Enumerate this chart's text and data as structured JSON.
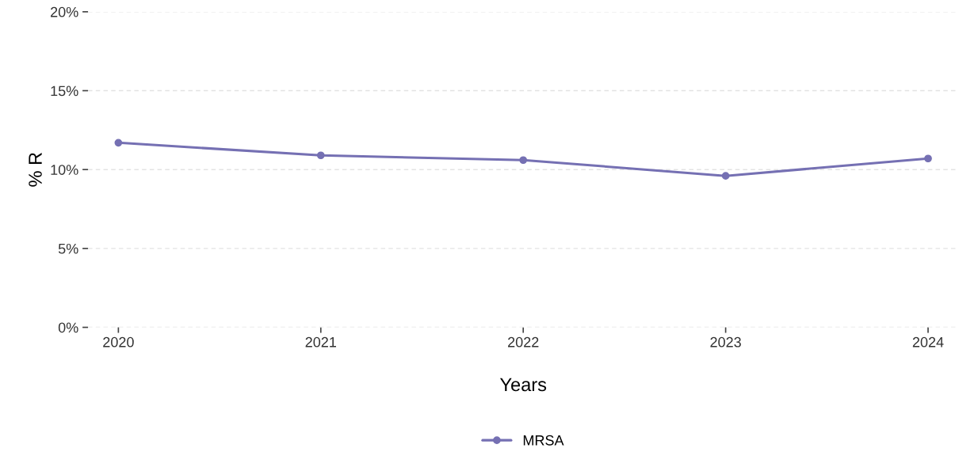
{
  "chart_data": {
    "type": "line",
    "xlabel": "Years",
    "ylabel": "% R",
    "categories": [
      "2020",
      "2021",
      "2022",
      "2023",
      "2024"
    ],
    "series": [
      {
        "name": "MRSA",
        "color": "#7570b3",
        "values": [
          11.7,
          10.9,
          10.6,
          9.6,
          10.7
        ]
      }
    ],
    "ylim": [
      0,
      20
    ],
    "yticks": [
      {
        "value": 0,
        "label": "0%"
      },
      {
        "value": 5,
        "label": "5%"
      },
      {
        "value": 10,
        "label": "10%"
      },
      {
        "value": 15,
        "label": "15%"
      },
      {
        "value": 20,
        "label": "20%"
      }
    ],
    "grid": "y",
    "legend": "bottom",
    "marker": "circle",
    "line_style": "solid"
  }
}
